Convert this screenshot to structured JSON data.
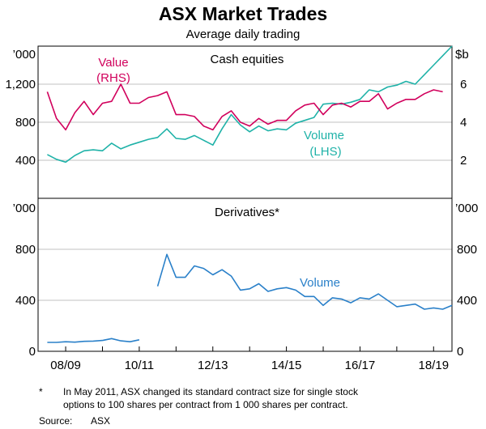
{
  "colors": {
    "value": "#d1005c",
    "volume_cash": "#1fb2a8",
    "volume_deriv": "#2a80c9",
    "grid": "#c0c0c0"
  },
  "title": "ASX Market Trades",
  "subtitle": "Average daily trading",
  "chart_data": [
    {
      "type": "line",
      "panel": "top",
      "title": "Cash equities",
      "left_unit": "’000",
      "right_unit": "$b",
      "left_ticks": [
        "400",
        "800",
        "1,200"
      ],
      "right_ticks": [
        "2",
        "4",
        "6"
      ],
      "ylim_left": [
        0,
        1600
      ],
      "ylim_right": [
        0,
        8
      ],
      "series": [
        {
          "name": "Value",
          "axis": "right",
          "label_lines": [
            "Value",
            "(RHS)"
          ],
          "points": [
            [
              2008.5,
              5.6
            ],
            [
              2008.75,
              4.2
            ],
            [
              2009.0,
              3.6
            ],
            [
              2009.25,
              4.5
            ],
            [
              2009.5,
              5.1
            ],
            [
              2009.75,
              4.4
            ],
            [
              2010.0,
              5.0
            ],
            [
              2010.25,
              5.1
            ],
            [
              2010.5,
              6.0
            ],
            [
              2010.75,
              5.0
            ],
            [
              2011.0,
              5.0
            ],
            [
              2011.25,
              5.3
            ],
            [
              2011.5,
              5.4
            ],
            [
              2011.75,
              5.6
            ],
            [
              2012.0,
              4.4
            ],
            [
              2012.25,
              4.4
            ],
            [
              2012.5,
              4.3
            ],
            [
              2012.75,
              3.8
            ],
            [
              2013.0,
              3.6
            ],
            [
              2013.25,
              4.3
            ],
            [
              2013.5,
              4.6
            ],
            [
              2013.75,
              4.0
            ],
            [
              2014.0,
              3.8
            ],
            [
              2014.25,
              4.2
            ],
            [
              2014.5,
              3.9
            ],
            [
              2014.75,
              4.1
            ],
            [
              2015.0,
              4.1
            ],
            [
              2015.25,
              4.6
            ],
            [
              2015.5,
              4.9
            ],
            [
              2015.75,
              5.0
            ],
            [
              2016.0,
              4.4
            ],
            [
              2016.25,
              4.9
            ],
            [
              2016.5,
              5.0
            ],
            [
              2016.75,
              4.8
            ],
            [
              2017.0,
              5.1
            ],
            [
              2017.25,
              5.1
            ],
            [
              2017.5,
              5.5
            ],
            [
              2017.75,
              4.7
            ],
            [
              2018.0,
              5.0
            ],
            [
              2018.25,
              5.2
            ],
            [
              2018.5,
              5.2
            ],
            [
              2018.75,
              5.5
            ],
            [
              2019.0,
              5.7
            ],
            [
              2019.25,
              5.6
            ]
          ]
        },
        {
          "name": "Volume",
          "axis": "left",
          "label_lines": [
            "Volume",
            "(LHS)"
          ],
          "points": [
            [
              2008.5,
              460
            ],
            [
              2008.75,
              410
            ],
            [
              2009.0,
              380
            ],
            [
              2009.25,
              450
            ],
            [
              2009.5,
              500
            ],
            [
              2009.75,
              510
            ],
            [
              2010.0,
              500
            ],
            [
              2010.25,
              580
            ],
            [
              2010.5,
              520
            ],
            [
              2010.75,
              560
            ],
            [
              2011.0,
              590
            ],
            [
              2011.25,
              620
            ],
            [
              2011.5,
              640
            ],
            [
              2011.75,
              730
            ],
            [
              2012.0,
              630
            ],
            [
              2012.25,
              620
            ],
            [
              2012.5,
              660
            ],
            [
              2012.75,
              610
            ],
            [
              2013.0,
              560
            ],
            [
              2013.25,
              730
            ],
            [
              2013.5,
              880
            ],
            [
              2013.75,
              770
            ],
            [
              2014.0,
              700
            ],
            [
              2014.25,
              760
            ],
            [
              2014.5,
              710
            ],
            [
              2014.75,
              730
            ],
            [
              2015.0,
              720
            ],
            [
              2015.25,
              790
            ],
            [
              2015.5,
              820
            ],
            [
              2015.75,
              850
            ],
            [
              2016.0,
              990
            ],
            [
              2016.25,
              1000
            ],
            [
              2016.5,
              990
            ],
            [
              2016.75,
              1010
            ],
            [
              2017.0,
              1040
            ],
            [
              2017.25,
              1140
            ],
            [
              2017.5,
              1120
            ],
            [
              2017.75,
              1170
            ],
            [
              2018.0,
              1190
            ],
            [
              2018.25,
              1230
            ],
            [
              2018.5,
              1200
            ],
            [
              2018.75,
              1300
            ],
            [
              2019.0,
              1400
            ],
            [
              2019.25,
              1500
            ],
            [
              2019.5,
              1600
            ]
          ]
        }
      ]
    },
    {
      "type": "line",
      "panel": "bottom",
      "title": "Derivatives*",
      "left_unit": "’000",
      "right_unit": "’000",
      "left_ticks": [
        "0",
        "400",
        "800"
      ],
      "right_ticks": [
        "0",
        "400",
        "800"
      ],
      "ylim": [
        0,
        1200
      ],
      "x_tick_labels": [
        "08/09",
        "10/11",
        "12/13",
        "14/15",
        "16/17",
        "18/19"
      ],
      "xlim": [
        2008.25,
        2019.5
      ],
      "series": [
        {
          "name": "Volume",
          "label_lines": [
            "Volume"
          ],
          "segments": [
            [
              [
                2008.5,
                70
              ],
              [
                2008.75,
                70
              ],
              [
                2009.0,
                75
              ],
              [
                2009.25,
                72
              ],
              [
                2009.5,
                78
              ],
              [
                2009.75,
                80
              ],
              [
                2010.0,
                85
              ],
              [
                2010.25,
                100
              ],
              [
                2010.5,
                82
              ],
              [
                2010.75,
                75
              ],
              [
                2011.0,
                90
              ]
            ],
            [
              [
                2011.5,
                510
              ],
              [
                2011.75,
                760
              ],
              [
                2012.0,
                580
              ],
              [
                2012.25,
                580
              ],
              [
                2012.5,
                670
              ],
              [
                2012.75,
                650
              ],
              [
                2013.0,
                600
              ],
              [
                2013.25,
                640
              ],
              [
                2013.5,
                590
              ],
              [
                2013.75,
                480
              ],
              [
                2014.0,
                490
              ],
              [
                2014.25,
                530
              ],
              [
                2014.5,
                470
              ],
              [
                2014.75,
                490
              ],
              [
                2015.0,
                500
              ],
              [
                2015.25,
                480
              ],
              [
                2015.5,
                430
              ],
              [
                2015.75,
                430
              ],
              [
                2016.0,
                360
              ],
              [
                2016.25,
                420
              ],
              [
                2016.5,
                410
              ],
              [
                2016.75,
                380
              ],
              [
                2017.0,
                420
              ],
              [
                2017.25,
                410
              ],
              [
                2017.5,
                450
              ],
              [
                2017.75,
                400
              ],
              [
                2018.0,
                350
              ],
              [
                2018.25,
                360
              ],
              [
                2018.5,
                370
              ],
              [
                2018.75,
                330
              ],
              [
                2019.0,
                340
              ],
              [
                2019.25,
                330
              ],
              [
                2019.5,
                360
              ]
            ]
          ]
        }
      ]
    }
  ],
  "footnote_mark": "*",
  "footnote_lines": [
    "In May 2011, ASX changed its standard contract size for single stock",
    "options to 100 shares per contract from 1 000 shares per contract."
  ],
  "source_label": "Source:",
  "source_value": "ASX"
}
